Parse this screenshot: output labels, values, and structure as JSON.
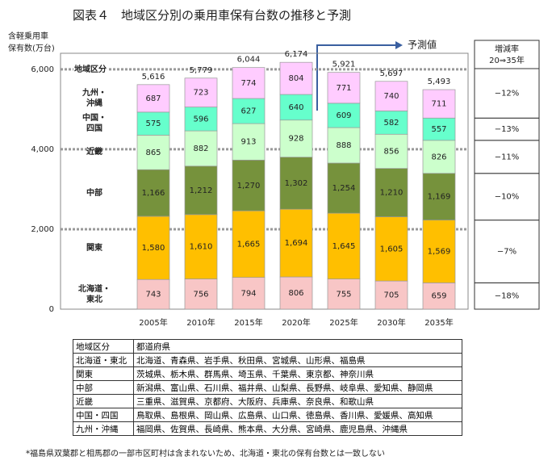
{
  "chart_data": {
    "type": "stacked-bar",
    "title": "図表４　地域区分別の乗用車保有台数の推移と予測",
    "y_label": [
      "含軽乗用車",
      "保有数(万台)"
    ],
    "legend_title": "地域区分",
    "annotation": "予測値",
    "categories": [
      "2005年",
      "2010年",
      "2015年",
      "2020年",
      "2025年",
      "2030年",
      "2035年"
    ],
    "ylim": [
      0,
      6400
    ],
    "yticks": [
      0,
      {
        "value": 2000,
        "label": "2,000"
      },
      {
        "value": 4000,
        "label": "4,000"
      },
      {
        "value": 6000,
        "label": "6,000"
      }
    ],
    "grid": true,
    "series": [
      {
        "name": "北海道・\n東北",
        "color": "#f8c6c6",
        "values": [
          743,
          756,
          794,
          806,
          755,
          705,
          659
        ],
        "change": -18,
        "change_label": "−18%"
      },
      {
        "name": "関東",
        "color": "#ffbf00",
        "values": [
          1580,
          1610,
          1665,
          1694,
          1645,
          1605,
          1569
        ],
        "value_labels": [
          "1,580",
          "1,610",
          "1,665",
          "1,694",
          "1,645",
          "1,605",
          "1,569"
        ],
        "change": -7,
        "change_label": "−7%"
      },
      {
        "name": "中部",
        "color": "#76923c",
        "values": [
          1166,
          1212,
          1270,
          1302,
          1254,
          1210,
          1169
        ],
        "value_labels": [
          "1,166",
          "1,212",
          "1,270",
          "1,302",
          "1,254",
          "1,210",
          "1,169"
        ],
        "change": -10,
        "change_label": "−10%"
      },
      {
        "name": "近畿",
        "color": "#ccffcc",
        "values": [
          865,
          882,
          913,
          928,
          888,
          856,
          826
        ],
        "change": -11,
        "change_label": "−11%"
      },
      {
        "name": "中国・\n四国",
        "color": "#66ffcc",
        "values": [
          575,
          596,
          627,
          640,
          609,
          582,
          557
        ],
        "change": -13,
        "change_label": "−13%"
      },
      {
        "name": "九州・\n沖縄",
        "color": "#ffccff",
        "values": [
          687,
          723,
          774,
          804,
          771,
          740,
          711
        ],
        "change": -12,
        "change_label": "−12%"
      }
    ],
    "totals": {
      "values": [
        5616,
        5779,
        6044,
        6174,
        5921,
        5697,
        5493
      ],
      "value_labels": [
        "5,616",
        "5,779",
        "6,044",
        "6,174",
        "5,921",
        "5,697",
        "5,493"
      ]
    },
    "change_header": [
      "増減率",
      "20⇒35年"
    ]
  },
  "region_table": {
    "header": [
      "地域区分",
      "都道府県"
    ],
    "rows": [
      [
        "北海道・東北",
        "北海道、青森県、岩手県、秋田県、宮城県、山形県、福島県"
      ],
      [
        "関東",
        "茨城県、栃木県、群馬県、埼玉県、千葉県、東京都、神奈川県"
      ],
      [
        "中部",
        "新潟県、富山県、石川県、福井県、山梨県、長野県、岐阜県、愛知県、静岡県"
      ],
      [
        "近畿",
        "三重県、滋賀県、京都府、大阪府、兵庫県、奈良県、和歌山県"
      ],
      [
        "中国・四国",
        "鳥取県、島根県、岡山県、広島県、山口県、徳島県、香川県、愛媛県、高知県"
      ],
      [
        "九州・沖縄",
        "福岡県、佐賀県、長崎県、熊本県、大分県、宮崎県、鹿児島県、沖縄県"
      ]
    ]
  },
  "footnote": "*福島県双葉郡と相馬郡の一部市区町村は含まれないため、北海道・東北の保有台数とは一致しない"
}
